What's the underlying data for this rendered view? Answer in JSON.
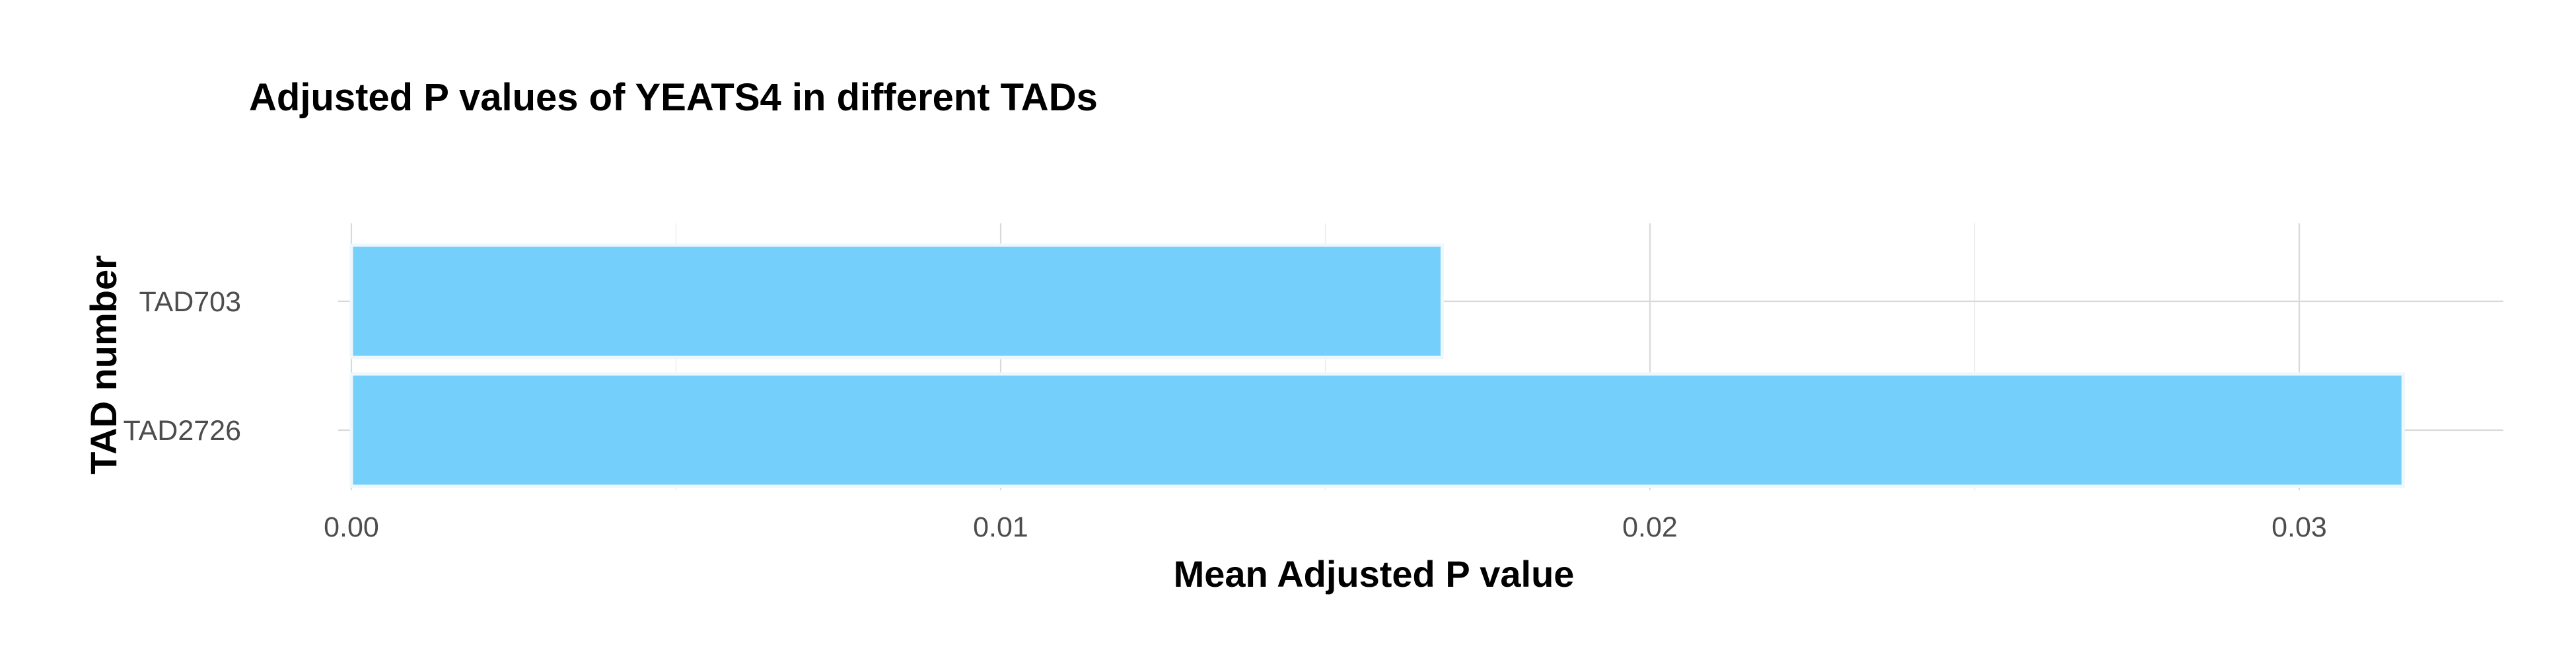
{
  "chart_data": {
    "type": "bar",
    "orientation": "horizontal",
    "title": "Adjusted P values of YEATS4 in different TADs",
    "xlabel": "Mean Adjusted P value",
    "ylabel": "TAD number",
    "categories": [
      "TAD703",
      "TAD2726"
    ],
    "values": [
      0.0168,
      0.0316
    ],
    "xlim": [
      0,
      0.0333
    ],
    "xticks": [
      0,
      0.01,
      0.02,
      0.03
    ],
    "xtick_labels": [
      "0.00",
      "0.01",
      "0.02",
      "0.03"
    ],
    "grid": true,
    "legend": "none",
    "bar_color": "#75cffb"
  }
}
